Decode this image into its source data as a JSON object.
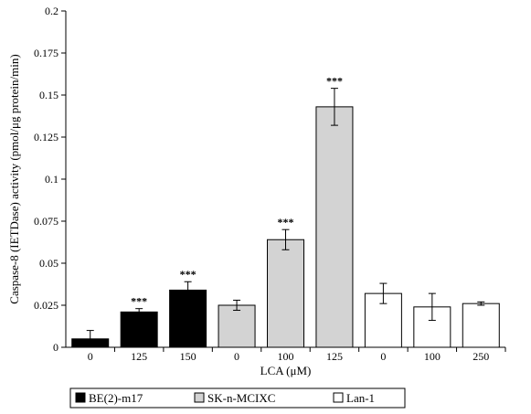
{
  "chart_data": {
    "type": "bar",
    "title": "",
    "xlabel": "LCA (μM)",
    "ylabel": "Caspase-8 (IETDase) activity  (pmol/μg protein/min)",
    "ylim": [
      0,
      0.2
    ],
    "yticks": [
      "0",
      "0.025",
      "0.05",
      "0.075",
      "0.1",
      "0.125",
      "0.15",
      "0.175",
      "0.2"
    ],
    "grid": false,
    "legend_position": "bottom",
    "series": [
      {
        "name": "BE(2)-m17",
        "color": "#000000",
        "categories": [
          "0",
          "125",
          "150"
        ],
        "values": [
          0.005,
          0.021,
          0.034
        ],
        "errors": [
          0.005,
          0.002,
          0.005
        ],
        "significance": [
          "",
          "***",
          "***"
        ]
      },
      {
        "name": "SK-n-MCIXC",
        "color": "#d3d3d3",
        "categories": [
          "0",
          "100",
          "125"
        ],
        "values": [
          0.025,
          0.064,
          0.143
        ],
        "errors": [
          0.003,
          0.006,
          0.011
        ],
        "significance": [
          "",
          "***",
          "***"
        ]
      },
      {
        "name": "Lan-1",
        "color": "#ffffff",
        "categories": [
          "0",
          "100",
          "250"
        ],
        "values": [
          0.032,
          0.024,
          0.026
        ],
        "errors": [
          0.006,
          0.008,
          0.001
        ],
        "significance": [
          "",
          "",
          ""
        ]
      }
    ]
  }
}
